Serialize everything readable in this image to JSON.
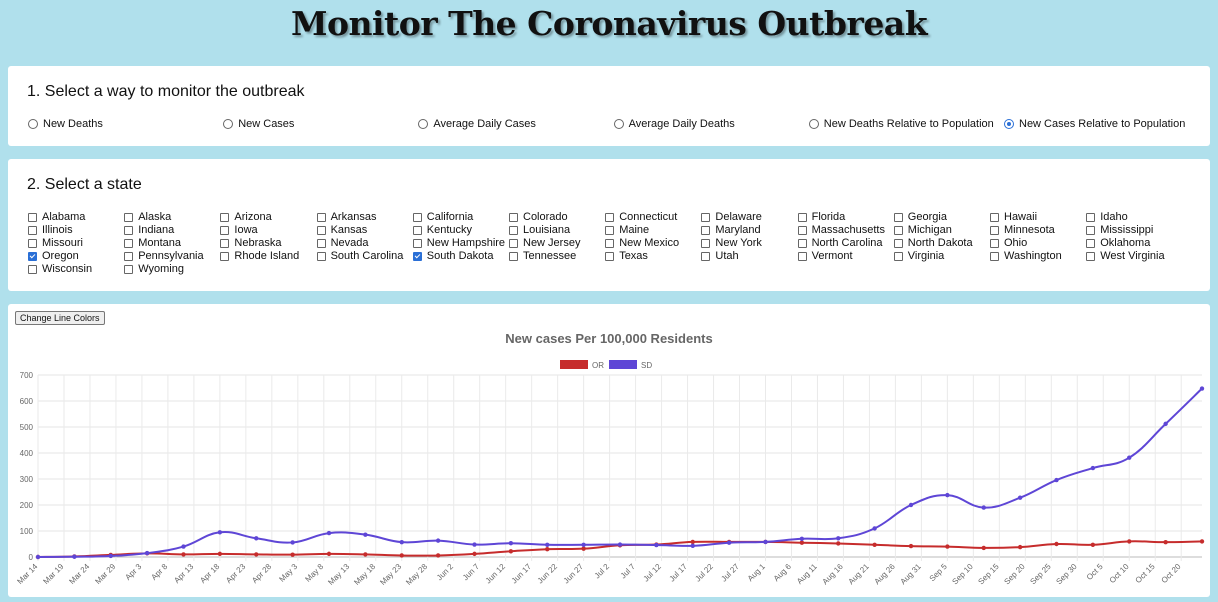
{
  "page": {
    "title": "Monitor The Coronavirus Outbreak"
  },
  "monitor": {
    "heading": "1. Select a way to monitor the outbreak",
    "options": [
      {
        "label": "New Deaths",
        "selected": false
      },
      {
        "label": "New Cases",
        "selected": false
      },
      {
        "label": "Average Daily Cases",
        "selected": false
      },
      {
        "label": "Average Daily Deaths",
        "selected": false
      },
      {
        "label": "New Deaths Relative to Population",
        "selected": false
      },
      {
        "label": "New Cases Relative to Population",
        "selected": true
      }
    ]
  },
  "states": {
    "heading": "2. Select a state",
    "items": [
      {
        "label": "Alabama",
        "checked": false
      },
      {
        "label": "Alaska",
        "checked": false
      },
      {
        "label": "Arizona",
        "checked": false
      },
      {
        "label": "Arkansas",
        "checked": false
      },
      {
        "label": "California",
        "checked": false
      },
      {
        "label": "Colorado",
        "checked": false
      },
      {
        "label": "Connecticut",
        "checked": false
      },
      {
        "label": "Delaware",
        "checked": false
      },
      {
        "label": "Florida",
        "checked": false
      },
      {
        "label": "Georgia",
        "checked": false
      },
      {
        "label": "Hawaii",
        "checked": false
      },
      {
        "label": "Idaho",
        "checked": false
      },
      {
        "label": "Illinois",
        "checked": false
      },
      {
        "label": "Indiana",
        "checked": false
      },
      {
        "label": "Iowa",
        "checked": false
      },
      {
        "label": "Kansas",
        "checked": false
      },
      {
        "label": "Kentucky",
        "checked": false
      },
      {
        "label": "Louisiana",
        "checked": false
      },
      {
        "label": "Maine",
        "checked": false
      },
      {
        "label": "Maryland",
        "checked": false
      },
      {
        "label": "Massachusetts",
        "checked": false
      },
      {
        "label": "Michigan",
        "checked": false
      },
      {
        "label": "Minnesota",
        "checked": false
      },
      {
        "label": "Mississippi",
        "checked": false
      },
      {
        "label": "Missouri",
        "checked": false
      },
      {
        "label": "Montana",
        "checked": false
      },
      {
        "label": "Nebraska",
        "checked": false
      },
      {
        "label": "Nevada",
        "checked": false
      },
      {
        "label": "New Hampshire",
        "checked": false
      },
      {
        "label": "New Jersey",
        "checked": false
      },
      {
        "label": "New Mexico",
        "checked": false
      },
      {
        "label": "New York",
        "checked": false
      },
      {
        "label": "North Carolina",
        "checked": false
      },
      {
        "label": "North Dakota",
        "checked": false
      },
      {
        "label": "Ohio",
        "checked": false
      },
      {
        "label": "Oklahoma",
        "checked": false
      },
      {
        "label": "Oregon",
        "checked": true
      },
      {
        "label": "Pennsylvania",
        "checked": false
      },
      {
        "label": "Rhode Island",
        "checked": false
      },
      {
        "label": "South Carolina",
        "checked": false
      },
      {
        "label": "South Dakota",
        "checked": true
      },
      {
        "label": "Tennessee",
        "checked": false
      },
      {
        "label": "Texas",
        "checked": false
      },
      {
        "label": "Utah",
        "checked": false
      },
      {
        "label": "Vermont",
        "checked": false
      },
      {
        "label": "Virginia",
        "checked": false
      },
      {
        "label": "Washington",
        "checked": false
      },
      {
        "label": "West Virginia",
        "checked": false
      },
      {
        "label": "Wisconsin",
        "checked": false
      },
      {
        "label": "Wyoming",
        "checked": false
      }
    ]
  },
  "controls": {
    "change_colors_label": "Change Line Colors"
  },
  "chart_data": {
    "type": "line",
    "title": "New cases Per 100,000 Residents",
    "xlabel": "",
    "ylabel": "",
    "legend_position": "top",
    "grid": true,
    "ylim": [
      0,
      700
    ],
    "yticks": [
      0,
      100,
      200,
      300,
      400,
      500,
      600,
      700
    ],
    "categories": [
      "Mar 14",
      "Mar 19",
      "Mar 24",
      "Mar 29",
      "Apr 3",
      "Apr 8",
      "Apr 13",
      "Apr 18",
      "Apr 23",
      "Apr 28",
      "May 3",
      "May 8",
      "May 13",
      "May 18",
      "May 23",
      "May 28",
      "Jun 2",
      "Jun 7",
      "Jun 12",
      "Jun 17",
      "Jun 22",
      "Jun 27",
      "Jul 2",
      "Jul 7",
      "Jul 12",
      "Jul 17",
      "Jul 22",
      "Jul 27",
      "Aug 1",
      "Aug 6",
      "Aug 11",
      "Aug 16",
      "Aug 21",
      "Aug 26",
      "Aug 31",
      "Sep 5",
      "Sep 10",
      "Sep 15",
      "Sep 20",
      "Sep 25",
      "Sep 30",
      "Oct 5",
      "Oct 10",
      "Oct 15",
      "Oct 20"
    ],
    "series": [
      {
        "name": "OR",
        "color": "#c62c2c",
        "x": [
          "Mar 14",
          "Mar 21",
          "Mar 28",
          "Apr 4",
          "Apr 11",
          "Apr 18",
          "Apr 25",
          "May 2",
          "May 9",
          "May 16",
          "May 23",
          "May 30",
          "Jun 6",
          "Jun 13",
          "Jun 20",
          "Jun 27",
          "Jul 4",
          "Jul 11",
          "Jul 18",
          "Jul 25",
          "Aug 1",
          "Aug 8",
          "Aug 15",
          "Aug 22",
          "Aug 29",
          "Sep 5",
          "Sep 12",
          "Sep 19",
          "Sep 26",
          "Oct 3",
          "Oct 10",
          "Oct 17",
          "Oct 24"
        ],
        "values": [
          0,
          2,
          8,
          14,
          10,
          12,
          10,
          9,
          12,
          10,
          6,
          6,
          12,
          22,
          30,
          32,
          45,
          48,
          58,
          58,
          58,
          55,
          52,
          47,
          42,
          40,
          35,
          38,
          50,
          47,
          60,
          57,
          60
        ]
      },
      {
        "name": "SD",
        "color": "#5e46d6",
        "x": [
          "Mar 14",
          "Mar 21",
          "Mar 28",
          "Apr 4",
          "Apr 11",
          "Apr 18",
          "Apr 25",
          "May 2",
          "May 9",
          "May 16",
          "May 23",
          "May 30",
          "Jun 6",
          "Jun 13",
          "Jun 20",
          "Jun 27",
          "Jul 4",
          "Jul 11",
          "Jul 18",
          "Jul 25",
          "Aug 1",
          "Aug 8",
          "Aug 15",
          "Aug 22",
          "Aug 29",
          "Sep 5",
          "Sep 12",
          "Sep 19",
          "Sep 26",
          "Oct 3",
          "Oct 10",
          "Oct 17",
          "Oct 24"
        ],
        "values": [
          0,
          1,
          4,
          15,
          40,
          95,
          72,
          56,
          92,
          86,
          57,
          63,
          48,
          53,
          47,
          47,
          48,
          46,
          43,
          55,
          58,
          70,
          72,
          110,
          200,
          238,
          190,
          228,
          296,
          342,
          382,
          512,
          648
        ]
      }
    ]
  }
}
